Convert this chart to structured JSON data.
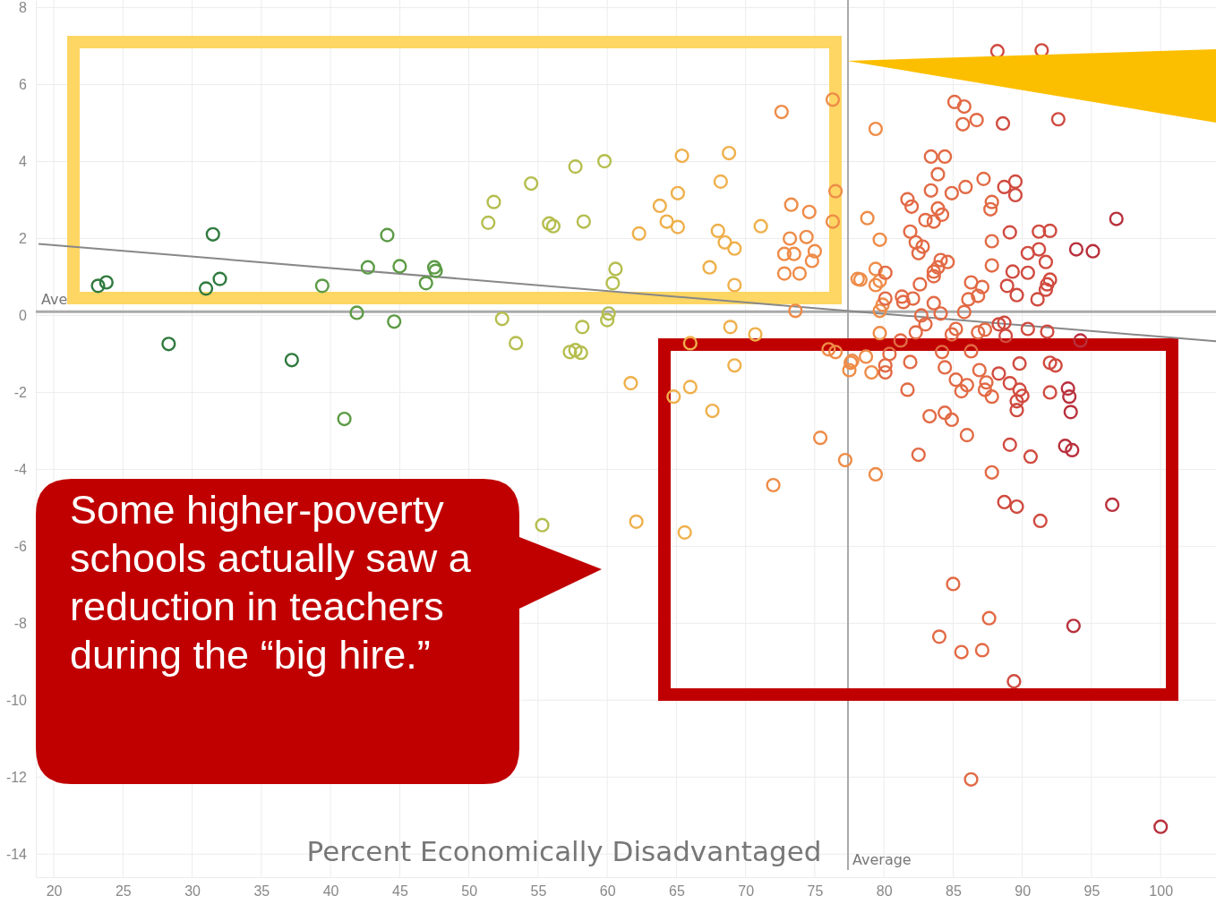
{
  "chart_data": {
    "type": "scatter",
    "xlabel": "Percent Economically Disadvantaged",
    "xlim": [
      18.7,
      104
    ],
    "ylim": [
      -14.6,
      8.2
    ],
    "xticks": [
      20,
      25,
      30,
      35,
      40,
      45,
      50,
      55,
      60,
      65,
      70,
      75,
      80,
      85,
      90,
      95,
      100
    ],
    "yticks": [
      -14,
      -12,
      -10,
      -8,
      -6,
      -4,
      -2,
      0,
      2,
      4,
      6,
      8
    ],
    "grid": true,
    "marker": "circle",
    "ref_lines": [
      {
        "axis": "y",
        "value": 0.1,
        "label": "Ave",
        "color": "#aaaaaa"
      },
      {
        "axis": "x",
        "value": 77.4,
        "label": "Average",
        "color": "#aaaaaa"
      }
    ],
    "annotations": [
      "Some higher-poverty schools actually saw a reduction in teachers during the “big hire.”"
    ],
    "series": [
      {
        "color": "#2f7a3e",
        "x": [
          23.2,
          23.8,
          28.3,
          31.0,
          31.5,
          32.0,
          37.2
        ],
        "values": [
          0.77,
          0.86,
          -0.74,
          0.7,
          2.11,
          0.95,
          -1.16
        ]
      },
      {
        "color": "#5c9b45",
        "x": [
          39.4,
          41.0,
          41.9,
          42.7,
          44.1,
          44.6,
          45.0,
          46.9,
          47.6,
          47.5
        ],
        "values": [
          0.77,
          -2.69,
          0.07,
          1.25,
          2.09,
          -0.16,
          1.28,
          0.84,
          1.16,
          1.25
        ]
      },
      {
        "color": "#b5be4e",
        "x": [
          51.4,
          51.8,
          52.4,
          53.4,
          54.5,
          55.3,
          55.8,
          56.1,
          57.7,
          58.3,
          57.3,
          57.7,
          58.1,
          58.2,
          59.8,
          60.1,
          60.0,
          60.6,
          60.4
        ],
        "values": [
          2.41,
          2.95,
          -0.09,
          -0.72,
          3.43,
          -5.45,
          2.39,
          2.32,
          3.87,
          2.44,
          -0.95,
          -0.9,
          -0.97,
          -0.3,
          4.01,
          0.05,
          -0.12,
          1.21,
          0.84
        ]
      },
      {
        "color": "#efb04c",
        "x": [
          61.7,
          62.1,
          62.3,
          63.8,
          64.3,
          64.8,
          65.1,
          65.1,
          65.4,
          65.6,
          66.0,
          66.0,
          67.4,
          67.6,
          68.0,
          68.2,
          68.5,
          68.8,
          69.2,
          69.2,
          68.9,
          69.2,
          70.7,
          71.1
        ],
        "values": [
          -1.76,
          -5.36,
          2.13,
          2.85,
          2.44,
          -2.11,
          2.3,
          3.18,
          4.15,
          -5.64,
          -1.86,
          -0.72,
          1.25,
          -2.48,
          2.2,
          3.48,
          1.9,
          4.22,
          1.74,
          0.79,
          -0.3,
          -1.3,
          -0.49,
          2.32
        ]
      },
      {
        "color": "#ee8c48",
        "x": [
          72.0,
          72.6,
          72.8,
          72.8,
          73.2,
          73.3,
          73.5,
          73.6,
          73.9,
          74.4,
          74.6,
          75.0,
          74.8,
          76.3,
          76.5,
          76.3,
          76.0,
          76.5,
          77.6,
          77.5,
          75.4,
          77.2,
          78.1,
          79.4,
          78.8,
          79.7,
          78.3,
          79.4,
          79.4,
          79.7,
          79.9,
          79.7,
          79.7,
          78.7,
          77.7,
          79.1,
          79.4
        ],
        "values": [
          -4.41,
          5.29,
          1.6,
          1.09,
          2.0,
          2.88,
          1.6,
          0.12,
          1.09,
          2.04,
          2.69,
          1.67,
          1.42,
          5.61,
          3.23,
          2.44,
          -0.88,
          -0.95,
          -1.23,
          -1.42,
          -3.18,
          -3.76,
          0.95,
          4.85,
          2.53,
          1.97,
          0.93,
          1.21,
          0.79,
          0.9,
          0.28,
          0.12,
          -0.46,
          -1.07,
          -1.18,
          -1.48,
          -4.13
        ]
      },
      {
        "color": "#e26a45",
        "x": [
          80.1,
          80.1,
          80.4,
          80.1,
          80.1,
          81.2,
          81.3,
          81.4,
          81.7,
          82.0,
          81.9,
          82.3,
          82.8,
          82.5,
          82.1,
          82.6,
          82.7,
          82.3,
          81.9,
          81.7,
          82.5,
          83.0,
          83.4,
          83.4,
          83.0,
          83.3,
          83.6,
          83.6,
          83.6,
          83.9,
          84.1,
          83.6,
          83.9,
          83.9,
          84.2,
          84.4,
          84.6,
          84.1,
          84.2,
          84.4,
          84.4,
          84.9,
          84.9,
          84.9,
          85.1,
          85.8,
          85.7,
          86.7,
          85.9,
          85.2,
          85.2,
          85.6,
          86.0,
          85.8,
          86.1,
          86.3,
          86.3,
          86.0,
          86.8,
          87.1,
          86.8,
          86.9,
          87.2,
          87.3,
          87.3,
          87.4,
          87.7,
          87.8,
          87.8,
          87.8,
          87.8,
          87.8,
          85.0,
          87.6,
          84.0,
          85.6,
          87.1,
          86.3
        ],
        "values": [
          1.11,
          0.44,
          -1.0,
          -1.3,
          -1.48,
          -0.65,
          0.49,
          0.35,
          3.02,
          2.83,
          2.18,
          1.9,
          1.79,
          1.62,
          0.44,
          0.81,
          0.0,
          -0.44,
          -1.21,
          -1.93,
          -3.62,
          2.48,
          4.13,
          3.25,
          -0.23,
          -2.62,
          2.44,
          1.02,
          1.14,
          1.25,
          1.44,
          0.32,
          3.67,
          2.78,
          2.62,
          4.13,
          1.39,
          0.05,
          -0.95,
          -1.35,
          -2.53,
          3.18,
          -0.49,
          -2.71,
          5.55,
          5.43,
          4.97,
          5.08,
          3.34,
          -0.35,
          -1.67,
          -1.97,
          -1.81,
          0.09,
          0.42,
          0.86,
          -0.93,
          -3.11,
          0.51,
          0.74,
          -0.44,
          -1.42,
          3.55,
          -0.37,
          -1.93,
          -1.74,
          2.76,
          2.95,
          1.93,
          1.3,
          -2.11,
          -4.08,
          -6.98,
          -7.87,
          -8.35,
          -8.75,
          -8.7,
          -12.06
        ]
      },
      {
        "color": "#d04b40",
        "x": [
          88.2,
          88.3,
          88.3,
          88.7,
          88.8,
          88.6,
          88.7,
          88.9,
          89.1,
          89.1,
          89.1,
          88.7,
          89.6,
          89.5,
          89.5,
          89.3,
          89.6,
          89.8,
          89.8,
          90.0,
          89.6,
          89.6,
          90.4,
          90.4,
          90.4,
          90.6,
          91.2,
          91.2,
          91.1,
          91.3,
          91.4,
          92.0,
          91.7,
          92.0,
          91.8,
          91.7,
          91.8,
          92.0,
          92.4,
          92.0,
          92.6,
          89.4
        ],
        "values": [
          6.87,
          -0.23,
          -1.51,
          -0.19,
          -0.53,
          4.99,
          3.34,
          0.77,
          2.16,
          -1.76,
          -3.36,
          -4.85,
          -4.97,
          3.48,
          3.13,
          1.14,
          0.53,
          -1.25,
          -1.93,
          -2.09,
          -2.23,
          -2.46,
          1.62,
          1.11,
          -0.35,
          -3.67,
          2.18,
          1.72,
          0.42,
          -5.34,
          6.89,
          2.2,
          1.39,
          0.93,
          0.81,
          0.67,
          -0.42,
          -1.23,
          -1.3,
          -2.0,
          5.1,
          -9.51
        ]
      },
      {
        "color": "#b8303c",
        "x": [
          93.3,
          93.4,
          93.5,
          93.1,
          93.6,
          93.9,
          94.2,
          95.1,
          96.8,
          96.5,
          93.7,
          100.0
        ],
        "values": [
          -1.9,
          -2.11,
          -2.51,
          -3.39,
          -3.5,
          1.72,
          -0.65,
          1.67,
          2.51,
          -4.92,
          -8.07,
          -13.29
        ]
      },
      {
        "type": "line",
        "marker": "none",
        "color": "#888888",
        "x": [
          18.9,
          104
        ],
        "values": [
          1.86,
          -0.67
        ]
      }
    ]
  }
}
